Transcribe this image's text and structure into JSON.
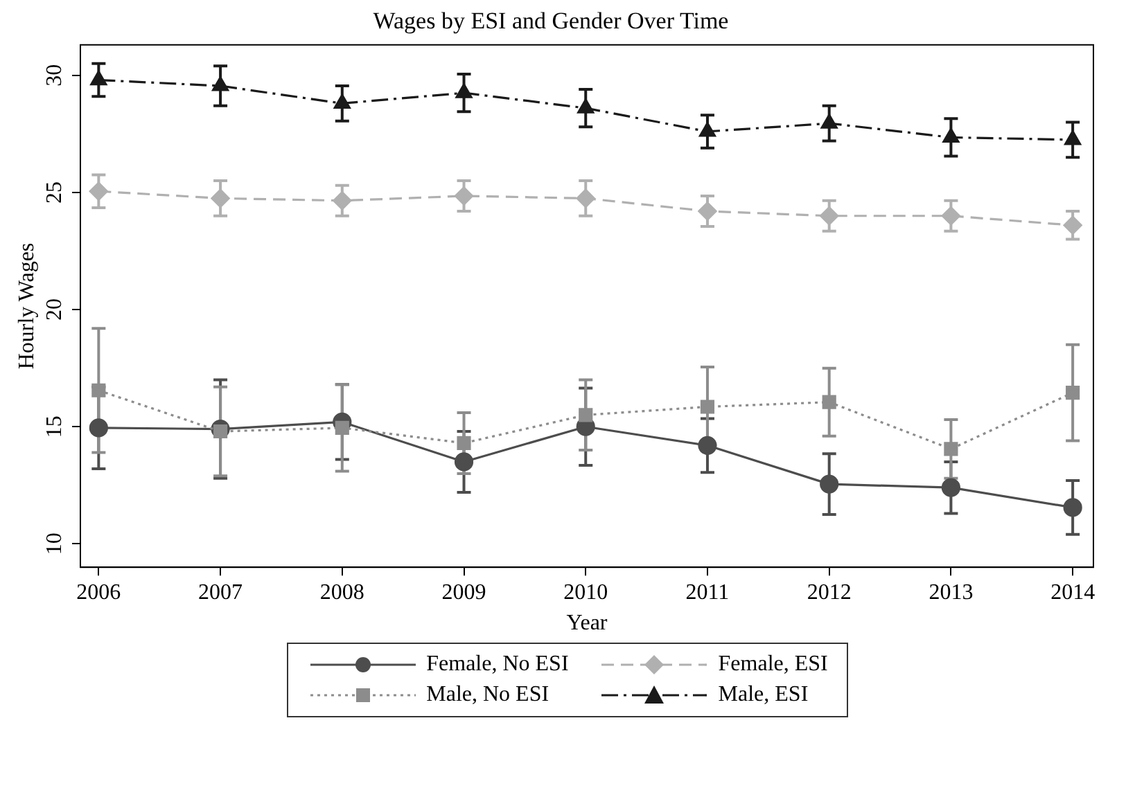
{
  "chart_data": {
    "type": "line",
    "title": "Wages by ESI and Gender Over Time",
    "xlabel": "Year",
    "ylabel": "Hourly Wages",
    "x": [
      2006,
      2007,
      2008,
      2009,
      2010,
      2011,
      2012,
      2013,
      2014
    ],
    "xlim": [
      2005.85,
      2014.17
    ],
    "xticks": [
      2006,
      2007,
      2008,
      2009,
      2010,
      2011,
      2012,
      2013,
      2014
    ],
    "ylim": [
      9.0,
      31.3
    ],
    "yticks": [
      10,
      15,
      20,
      25,
      30
    ],
    "grid": false,
    "legend": "bottom",
    "series": [
      {
        "name": "Female, No ESI",
        "color": "#4d4d4d",
        "marker": "circle",
        "line_style": "solid",
        "values": [
          14.95,
          14.9,
          15.2,
          13.5,
          15.0,
          14.2,
          12.55,
          12.4,
          11.55
        ],
        "errors": [
          1.75,
          2.1,
          1.6,
          1.3,
          1.65,
          1.15,
          1.3,
          1.1,
          1.15
        ]
      },
      {
        "name": "Female, ESI",
        "color": "#b0b0b0",
        "marker": "diamond",
        "line_style": "dashed",
        "values": [
          25.05,
          24.75,
          24.65,
          24.85,
          24.75,
          24.2,
          24.0,
          24.0,
          23.6
        ],
        "errors": [
          0.7,
          0.75,
          0.65,
          0.65,
          0.75,
          0.65,
          0.65,
          0.65,
          0.6
        ]
      },
      {
        "name": "Male, No ESI",
        "color": "#8c8c8c",
        "marker": "square",
        "line_style": "dotted",
        "values": [
          16.55,
          14.8,
          14.95,
          14.3,
          15.5,
          15.85,
          16.05,
          14.05,
          16.45
        ],
        "errors": [
          2.65,
          1.9,
          1.85,
          1.3,
          1.5,
          1.7,
          1.45,
          1.25,
          2.05
        ]
      },
      {
        "name": "Male, ESI",
        "color": "#1a1a1a",
        "marker": "triangle",
        "line_style": "dashdot",
        "values": [
          29.8,
          29.55,
          28.8,
          29.25,
          28.6,
          27.6,
          27.95,
          27.35,
          27.25
        ],
        "errors": [
          0.7,
          0.85,
          0.75,
          0.8,
          0.8,
          0.7,
          0.75,
          0.8,
          0.75
        ]
      }
    ]
  }
}
